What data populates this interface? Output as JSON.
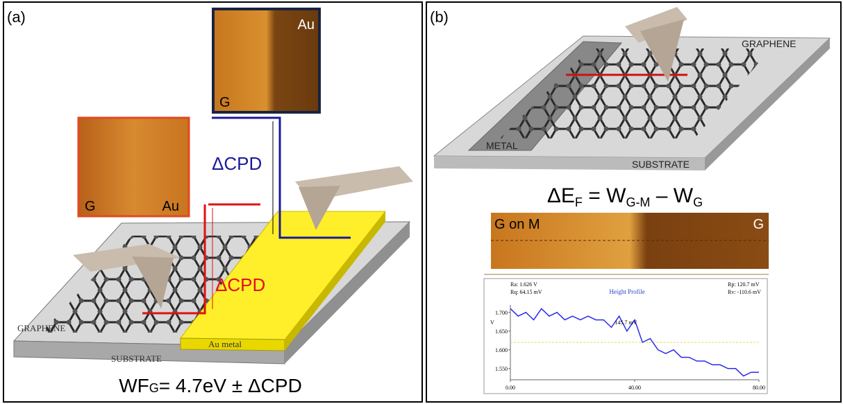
{
  "panel_a": {
    "label": "(a)",
    "afm_top": {
      "right_label": "Au",
      "left_label": "G"
    },
    "afm_left": {
      "left_label": "G",
      "right_label": "Au"
    },
    "delta_cpd_blue": "ΔCPD",
    "delta_cpd_red": "ΔCPD",
    "graphene": "GRAPHENE",
    "metal": "Au metal",
    "substrate": "SUBSTRATE",
    "formula": [
      "WF",
      "G",
      "= 4.7eV ± ΔCPD"
    ]
  },
  "panel_b": {
    "label": "(b)",
    "graphene": "GRAPHENE",
    "metal": "METAL",
    "substrate": "SUBSTRATE",
    "equation": [
      "ΔE",
      "F",
      " = W",
      "G-M",
      " – W",
      "G"
    ],
    "strip": {
      "left_label": "G on M",
      "right_label": "G"
    },
    "profile": {
      "title": "Height Profile",
      "ra": "Ra: 1.626 V",
      "rq": "Rq: 64.15 mV",
      "rp": "Rp: 120.7 mV",
      "rv": "Rv: -110.6 mV",
      "annotation": "145.7 mV",
      "y_label": "V",
      "xlim": [
        0,
        80
      ],
      "ylim": [
        1.52,
        1.72
      ],
      "xticks": [
        {
          "value": 0,
          "label": "0.00"
        },
        {
          "value": 40,
          "label": "40.00"
        },
        {
          "value": 80,
          "label": "80.00"
        }
      ],
      "yticks": [
        {
          "value": 1.7,
          "label": "1.700"
        },
        {
          "value": 1.65,
          "label": "1.650"
        },
        {
          "value": 1.6,
          "label": "1.600"
        },
        {
          "value": 1.55,
          "label": "1.550"
        }
      ],
      "color": "#2a2aee",
      "x": [
        0,
        2.5,
        5,
        7.5,
        10,
        12.5,
        15,
        17.5,
        20,
        22.5,
        25,
        27.5,
        30,
        32.5,
        35,
        37.5,
        40,
        42.5,
        45,
        47.5,
        50,
        52.5,
        55,
        57.5,
        60,
        62.5,
        65,
        67.5,
        70,
        72.5,
        75,
        77.5,
        80
      ],
      "values": [
        1.71,
        1.69,
        1.7,
        1.68,
        1.71,
        1.69,
        1.7,
        1.68,
        1.69,
        1.68,
        1.69,
        1.68,
        1.68,
        1.66,
        1.69,
        1.65,
        1.68,
        1.62,
        1.63,
        1.6,
        1.59,
        1.6,
        1.58,
        1.58,
        1.57,
        1.57,
        1.56,
        1.56,
        1.55,
        1.55,
        1.53,
        1.54,
        1.54
      ]
    }
  }
}
